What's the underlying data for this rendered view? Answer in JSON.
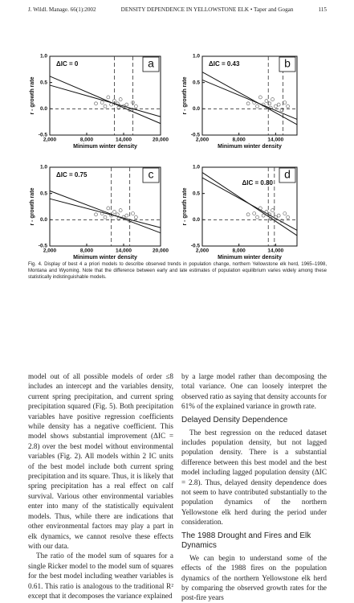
{
  "header": {
    "journal": "J. Wildl. Manage. 66(1):2002",
    "running_title": "DENSITY DEPENDENCE IN YELLOWSTONE ELK • Taper and Gogan",
    "page": "115"
  },
  "figure": {
    "points": {
      "x": [
        9500,
        10500,
        11000,
        11500,
        12000,
        12500,
        13000,
        13200,
        13500,
        14000,
        14500,
        15000,
        15500,
        16000
      ],
      "y": [
        0.1,
        0.12,
        0.05,
        0.22,
        0.08,
        0.15,
        0.1,
        0.02,
        0.18,
        0.05,
        0.08,
        -0.02,
        0.12,
        0.05
      ]
    },
    "panels": [
      {
        "label": "a",
        "aic": "ΔIC = 0",
        "xlabel": "Minimum winter density",
        "ylabel": "r - growth rate",
        "xlim": [
          2000,
          20000
        ],
        "ylim": [
          -0.5,
          1.0
        ],
        "xticks": [
          {
            "value": 2000,
            "label": "2,000"
          },
          {
            "value": 8000,
            "label": "8,000"
          },
          {
            "value": 14000,
            "label": "14,000"
          },
          {
            "value": 20000,
            "label": "20,000"
          }
        ],
        "yticks": [
          -0.5,
          {
            "value": 0,
            "label": "0.0"
          },
          0.5,
          {
            "value": 1,
            "label": "1.0"
          }
        ],
        "equilibria": [
          12500,
          15500
        ],
        "lines": [
          {
            "x": [
              2000,
              20000
            ],
            "y": [
              0.62,
              -0.28
            ]
          },
          {
            "x": [
              2000,
              20000
            ],
            "y": [
              0.45,
              -0.15
            ]
          }
        ]
      },
      {
        "label": "b",
        "aic": "ΔIC = 0.43",
        "xlabel": "Minimum winter density",
        "ylabel": "r - growth rate",
        "xlim": [
          2000,
          17500
        ],
        "ylim": [
          -0.5,
          1.0
        ],
        "xticks": [
          {
            "value": 2000,
            "label": "2,000"
          },
          {
            "value": 8000,
            "label": "8,000"
          },
          {
            "value": 14000,
            "label": "14,000"
          }
        ],
        "yticks": [
          -0.5,
          {
            "value": 0,
            "label": "0.0"
          },
          0.5,
          {
            "value": 1,
            "label": "1.0"
          }
        ],
        "equilibria": [
          12800,
          15200
        ],
        "lines": [
          {
            "x": [
              2000,
              17500
            ],
            "y": [
              0.7,
              -0.3
            ]
          },
          {
            "x": [
              2000,
              17500
            ],
            "y": [
              0.55,
              -0.2
            ]
          }
        ]
      },
      {
        "label": "c",
        "aic": "ΔIC = 0.75",
        "xlabel": "Minimum winter density",
        "ylabel": "r - growth rate",
        "xlim": [
          2000,
          20000
        ],
        "ylim": [
          -0.5,
          1.0
        ],
        "xticks": [
          {
            "value": 2000,
            "label": "2,000"
          },
          {
            "value": 8000,
            "label": "8,000"
          },
          {
            "value": 14000,
            "label": "14,000"
          },
          {
            "value": 20000,
            "label": "20,000"
          }
        ],
        "yticks": [
          -0.5,
          {
            "value": 0,
            "label": "0.0"
          },
          0.5,
          {
            "value": 1,
            "label": "1.0"
          }
        ],
        "equilibria": [
          12000,
          15000
        ],
        "lines": [
          {
            "x": [
              2000,
              20000
            ],
            "y": [
              0.55,
              -0.25
            ]
          },
          {
            "x": [
              2000,
              20000
            ],
            "y": [
              0.4,
              -0.15
            ]
          }
        ]
      },
      {
        "label": "d",
        "aic": "ΔIC = 0.80",
        "xlabel": "Minimum winter density",
        "ylabel": "r - growth rate",
        "xlim": [
          2000,
          17500
        ],
        "ylim": [
          -0.5,
          1.0
        ],
        "xticks": [
          {
            "value": 2000,
            "label": "2,000"
          },
          {
            "value": 8000,
            "label": "8,000"
          },
          {
            "value": 14000,
            "label": "14,000"
          }
        ],
        "yticks": [
          -0.5,
          {
            "value": 0,
            "label": "0.0"
          },
          0.5,
          {
            "value": 1,
            "label": "1.0"
          }
        ],
        "equilibria": [
          12800,
          13800
        ],
        "lines": [
          {
            "x": [
              2000,
              17500
            ],
            "y": [
              0.8,
              -0.2
            ]
          },
          {
            "x": [
              2000,
              17500
            ],
            "y": [
              0.9,
              -0.3
            ]
          }
        ]
      }
    ],
    "caption": "Fig. 4. Display of best 4 a priori models to describe observed trends in population change, northern Yellowstone elk herd, 1965–1998, Montana and Wyoming. Note that the difference between early and late estimates of population equilibrium varies widely among these statistically indistinguishable models."
  },
  "left_column": [
    "model out of all possible models of order ≤8 includes an intercept and the variables density, current spring precipitation, and current spring precipitation squared (Fig. 5). Both precipitation variables have positive regression coefficients while density has a negative coefficient. This model shows substantial improvement (ΔIC = 2.8) over the best model without environmental variables (Fig. 2). All models within 2 IC units of the best model include both current spring precipitation and its square. Thus, it is likely that spring precipitation has a real effect on calf survival. Various other environmental variables enter into many of the statistically equivalent models. Thus, while there are indications that other environmental factors may play a part in elk dynamics, we cannot resolve these effects with our data.",
    "The ratio of the model sum of squares for a single Ricker model to the model sum of squares for the best model including weather variables is 0.61. This ratio is analogous to the traditional R² except that it decomposes the variance explained"
  ],
  "right_column": {
    "intro": "by a large model rather than decomposing the total variance. One can loosely interpret the observed ratio as saying that density accounts for 61% of the explained variance in growth rate.",
    "heading_1": "Delayed Density Dependence",
    "paragraph_1": "The best regression on the reduced dataset includes population density, but not lagged population density. There is a substantial difference between this best model and the best model including lagged population density (ΔIC = 2.8). Thus, delayed density dependence does not seem to have contributed substantially to the population dynamics of the northern Yellowstone elk herd during the period under consideration.",
    "heading_2": "The 1988 Drought and Fires and Elk Dynamics",
    "paragraph_2": "We can begin to understand some of the effects of the 1988 fires on the population dynamics of the northern Yellowstone elk herd by comparing the observed growth rates for the post-fire years"
  }
}
